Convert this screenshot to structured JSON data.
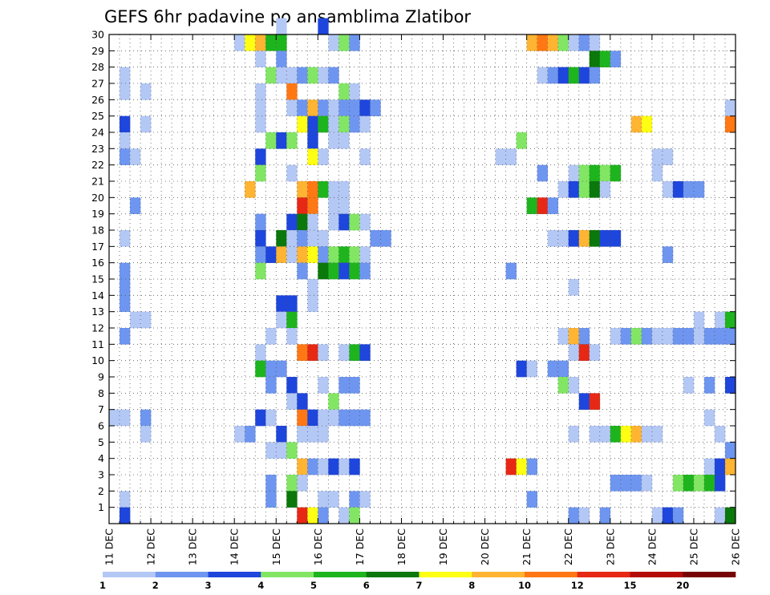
{
  "chart_data": {
    "type": "heatmap",
    "title": "GEFS 6hr padavine po ansamblima Zlatibor",
    "x_tick_labels": [
      "11 DEC",
      "12 DEC",
      "13 DEC",
      "14 DEC",
      "15 DEC",
      "16 DEC",
      "17 DEC",
      "18 DEC",
      "19 DEC",
      "20 DEC",
      "21 DEC",
      "22 DEC",
      "23 DEC",
      "24 DEC",
      "25 DEC",
      "26 DEC"
    ],
    "y_tick_labels": [
      "1",
      "2",
      "3",
      "4",
      "5",
      "6",
      "7",
      "8",
      "9",
      "10",
      "11",
      "12",
      "13",
      "14",
      "15",
      "16",
      "17",
      "18",
      "19",
      "20",
      "21",
      "22",
      "23",
      "24",
      "25",
      "26",
      "27",
      "28",
      "29",
      "30"
    ],
    "x_range": [
      0,
      60
    ],
    "y_range": [
      0,
      30
    ],
    "grid": true,
    "colorbar_labels": [
      "1",
      "2",
      "3",
      "4",
      "5",
      "6",
      "7",
      "8",
      "10",
      "12",
      "15",
      "20"
    ],
    "colorbar_colors": [
      "#b4c8f5",
      "#6e96f0",
      "#1e46dc",
      "#82e664",
      "#1eb41e",
      "#0a780a",
      "#ffff14",
      "#ffb432",
      "#ff7814",
      "#e62814",
      "#b40a0a",
      "#780505"
    ],
    "cells_legend": "each cell: [time_step (6h steps from 11 DEC 00Z), ensemble_member, precipitation_class_index 0-11]",
    "cells": [
      [
        16,
        30,
        0
      ],
      [
        20,
        30,
        2
      ],
      [
        12,
        29,
        0
      ],
      [
        13,
        29,
        6
      ],
      [
        14,
        29,
        7
      ],
      [
        15,
        29,
        4
      ],
      [
        16,
        29,
        4
      ],
      [
        21,
        29,
        0
      ],
      [
        22,
        29,
        3
      ],
      [
        23,
        29,
        1
      ],
      [
        40,
        29,
        7
      ],
      [
        41,
        29,
        8
      ],
      [
        42,
        29,
        7
      ],
      [
        43,
        29,
        3
      ],
      [
        44,
        29,
        0
      ],
      [
        45,
        29,
        1
      ],
      [
        46,
        29,
        0
      ],
      [
        14,
        28,
        0
      ],
      [
        16,
        28,
        1
      ],
      [
        46,
        28,
        5
      ],
      [
        47,
        28,
        4
      ],
      [
        48,
        28,
        1
      ],
      [
        1,
        27,
        0
      ],
      [
        15,
        27,
        3
      ],
      [
        16,
        27,
        0
      ],
      [
        17,
        27,
        0
      ],
      [
        18,
        27,
        1
      ],
      [
        19,
        27,
        3
      ],
      [
        20,
        27,
        0
      ],
      [
        21,
        27,
        1
      ],
      [
        41,
        27,
        0
      ],
      [
        42,
        27,
        1
      ],
      [
        43,
        27,
        2
      ],
      [
        44,
        27,
        4
      ],
      [
        45,
        27,
        2
      ],
      [
        46,
        27,
        1
      ],
      [
        1,
        26,
        0
      ],
      [
        3,
        26,
        0
      ],
      [
        14,
        26,
        0
      ],
      [
        17,
        26,
        8
      ],
      [
        22,
        26,
        3
      ],
      [
        23,
        26,
        0
      ],
      [
        14,
        25,
        0
      ],
      [
        17,
        25,
        0
      ],
      [
        18,
        25,
        1
      ],
      [
        19,
        25,
        7
      ],
      [
        20,
        25,
        1
      ],
      [
        21,
        25,
        0
      ],
      [
        22,
        25,
        1
      ],
      [
        23,
        25,
        1
      ],
      [
        24,
        25,
        2
      ],
      [
        25,
        25,
        1
      ],
      [
        59,
        25,
        0
      ],
      [
        1,
        24,
        2
      ],
      [
        3,
        24,
        0
      ],
      [
        14,
        24,
        0
      ],
      [
        18,
        24,
        6
      ],
      [
        19,
        24,
        2
      ],
      [
        20,
        24,
        4
      ],
      [
        21,
        24,
        0
      ],
      [
        22,
        24,
        3
      ],
      [
        23,
        24,
        1
      ],
      [
        24,
        24,
        0
      ],
      [
        50,
        24,
        7
      ],
      [
        51,
        24,
        6
      ],
      [
        59,
        24,
        8
      ],
      [
        1,
        23,
        0
      ],
      [
        15,
        23,
        3
      ],
      [
        16,
        23,
        2
      ],
      [
        17,
        23,
        3
      ],
      [
        19,
        23,
        2
      ],
      [
        21,
        23,
        0
      ],
      [
        22,
        23,
        0
      ],
      [
        39,
        23,
        3
      ],
      [
        1,
        22,
        1
      ],
      [
        2,
        22,
        0
      ],
      [
        14,
        22,
        2
      ],
      [
        19,
        22,
        6
      ],
      [
        20,
        22,
        0
      ],
      [
        24,
        22,
        0
      ],
      [
        37,
        22,
        0
      ],
      [
        38,
        22,
        0
      ],
      [
        52,
        22,
        0
      ],
      [
        53,
        22,
        0
      ],
      [
        14,
        21,
        3
      ],
      [
        17,
        21,
        0
      ],
      [
        41,
        21,
        1
      ],
      [
        44,
        21,
        0
      ],
      [
        45,
        21,
        3
      ],
      [
        46,
        21,
        4
      ],
      [
        47,
        21,
        3
      ],
      [
        48,
        21,
        4
      ],
      [
        52,
        21,
        0
      ],
      [
        13,
        20,
        7
      ],
      [
        18,
        20,
        7
      ],
      [
        19,
        20,
        8
      ],
      [
        20,
        20,
        4
      ],
      [
        21,
        20,
        0
      ],
      [
        22,
        20,
        0
      ],
      [
        43,
        20,
        0
      ],
      [
        44,
        20,
        2
      ],
      [
        45,
        20,
        3
      ],
      [
        46,
        20,
        5
      ],
      [
        47,
        20,
        0
      ],
      [
        53,
        20,
        0
      ],
      [
        54,
        20,
        2
      ],
      [
        55,
        20,
        1
      ],
      [
        56,
        20,
        1
      ],
      [
        2,
        19,
        1
      ],
      [
        18,
        19,
        9
      ],
      [
        19,
        19,
        8
      ],
      [
        21,
        19,
        0
      ],
      [
        22,
        19,
        0
      ],
      [
        40,
        19,
        4
      ],
      [
        41,
        19,
        9
      ],
      [
        42,
        19,
        1
      ],
      [
        14,
        18,
        1
      ],
      [
        17,
        18,
        2
      ],
      [
        18,
        18,
        5
      ],
      [
        19,
        18,
        0
      ],
      [
        21,
        18,
        0
      ],
      [
        22,
        18,
        2
      ],
      [
        23,
        18,
        3
      ],
      [
        24,
        18,
        0
      ],
      [
        1,
        17,
        0
      ],
      [
        14,
        17,
        2
      ],
      [
        16,
        17,
        5
      ],
      [
        17,
        17,
        0
      ],
      [
        18,
        17,
        1
      ],
      [
        19,
        17,
        0
      ],
      [
        20,
        17,
        0
      ],
      [
        25,
        17,
        1
      ],
      [
        26,
        17,
        1
      ],
      [
        42,
        17,
        0
      ],
      [
        43,
        17,
        0
      ],
      [
        44,
        17,
        2
      ],
      [
        45,
        17,
        7
      ],
      [
        46,
        17,
        5
      ],
      [
        47,
        17,
        2
      ],
      [
        48,
        17,
        2
      ],
      [
        14,
        16,
        1
      ],
      [
        15,
        16,
        2
      ],
      [
        16,
        16,
        7
      ],
      [
        17,
        16,
        0
      ],
      [
        18,
        16,
        7
      ],
      [
        19,
        16,
        6
      ],
      [
        20,
        16,
        1
      ],
      [
        21,
        16,
        3
      ],
      [
        22,
        16,
        4
      ],
      [
        23,
        16,
        3
      ],
      [
        24,
        16,
        0
      ],
      [
        53,
        16,
        1
      ],
      [
        1,
        15,
        1
      ],
      [
        14,
        15,
        3
      ],
      [
        18,
        15,
        1
      ],
      [
        20,
        15,
        5
      ],
      [
        21,
        15,
        4
      ],
      [
        22,
        15,
        2
      ],
      [
        23,
        15,
        4
      ],
      [
        24,
        15,
        1
      ],
      [
        38,
        15,
        1
      ],
      [
        1,
        14,
        1
      ],
      [
        19,
        14,
        0
      ],
      [
        44,
        14,
        0
      ],
      [
        1,
        13,
        1
      ],
      [
        16,
        13,
        2
      ],
      [
        17,
        13,
        2
      ],
      [
        19,
        13,
        0
      ],
      [
        2,
        12,
        0
      ],
      [
        3,
        12,
        0
      ],
      [
        16,
        12,
        0
      ],
      [
        17,
        12,
        4
      ],
      [
        56,
        12,
        0
      ],
      [
        58,
        12,
        0
      ],
      [
        59,
        12,
        4
      ],
      [
        1,
        11,
        1
      ],
      [
        15,
        11,
        0
      ],
      [
        17,
        11,
        0
      ],
      [
        43,
        11,
        0
      ],
      [
        44,
        11,
        7
      ],
      [
        45,
        11,
        1
      ],
      [
        48,
        11,
        0
      ],
      [
        49,
        11,
        1
      ],
      [
        50,
        11,
        3
      ],
      [
        51,
        11,
        1
      ],
      [
        52,
        11,
        0
      ],
      [
        53,
        11,
        0
      ],
      [
        54,
        11,
        1
      ],
      [
        55,
        11,
        1
      ],
      [
        56,
        11,
        0
      ],
      [
        57,
        11,
        1
      ],
      [
        58,
        11,
        1
      ],
      [
        59,
        11,
        1
      ],
      [
        14,
        10,
        0
      ],
      [
        18,
        10,
        8
      ],
      [
        19,
        10,
        9
      ],
      [
        20,
        10,
        0
      ],
      [
        22,
        10,
        0
      ],
      [
        23,
        10,
        4
      ],
      [
        24,
        10,
        2
      ],
      [
        44,
        10,
        0
      ],
      [
        45,
        10,
        9
      ],
      [
        46,
        10,
        0
      ],
      [
        14,
        9,
        4
      ],
      [
        15,
        9,
        1
      ],
      [
        16,
        9,
        1
      ],
      [
        39,
        9,
        2
      ],
      [
        40,
        9,
        0
      ],
      [
        42,
        9,
        1
      ],
      [
        43,
        9,
        1
      ],
      [
        15,
        8,
        1
      ],
      [
        17,
        8,
        2
      ],
      [
        20,
        8,
        0
      ],
      [
        22,
        8,
        1
      ],
      [
        23,
        8,
        1
      ],
      [
        43,
        8,
        3
      ],
      [
        44,
        8,
        0
      ],
      [
        55,
        8,
        0
      ],
      [
        57,
        8,
        1
      ],
      [
        59,
        8,
        2
      ],
      [
        17,
        7,
        0
      ],
      [
        18,
        7,
        2
      ],
      [
        21,
        7,
        3
      ],
      [
        45,
        7,
        2
      ],
      [
        46,
        7,
        9
      ],
      [
        0,
        6,
        0
      ],
      [
        1,
        6,
        0
      ],
      [
        3,
        6,
        1
      ],
      [
        14,
        6,
        2
      ],
      [
        15,
        6,
        0
      ],
      [
        18,
        6,
        8
      ],
      [
        19,
        6,
        2
      ],
      [
        20,
        6,
        0
      ],
      [
        21,
        6,
        0
      ],
      [
        22,
        6,
        1
      ],
      [
        23,
        6,
        1
      ],
      [
        24,
        6,
        1
      ],
      [
        57,
        6,
        0
      ],
      [
        3,
        5,
        0
      ],
      [
        12,
        5,
        0
      ],
      [
        13,
        5,
        1
      ],
      [
        16,
        5,
        2
      ],
      [
        18,
        5,
        0
      ],
      [
        19,
        5,
        0
      ],
      [
        20,
        5,
        0
      ],
      [
        44,
        5,
        0
      ],
      [
        46,
        5,
        0
      ],
      [
        47,
        5,
        0
      ],
      [
        48,
        5,
        4
      ],
      [
        49,
        5,
        6
      ],
      [
        50,
        5,
        7
      ],
      [
        51,
        5,
        0
      ],
      [
        52,
        5,
        0
      ],
      [
        58,
        5,
        0
      ],
      [
        15,
        4,
        0
      ],
      [
        16,
        4,
        0
      ],
      [
        17,
        4,
        3
      ],
      [
        59,
        4,
        1
      ],
      [
        18,
        3,
        7
      ],
      [
        19,
        3,
        1
      ],
      [
        20,
        3,
        0
      ],
      [
        21,
        3,
        2
      ],
      [
        22,
        3,
        0
      ],
      [
        23,
        3,
        2
      ],
      [
        38,
        3,
        9
      ],
      [
        39,
        3,
        6
      ],
      [
        40,
        3,
        1
      ],
      [
        57,
        3,
        0
      ],
      [
        58,
        3,
        2
      ],
      [
        59,
        3,
        7
      ],
      [
        15,
        2,
        1
      ],
      [
        17,
        2,
        3
      ],
      [
        18,
        2,
        0
      ],
      [
        48,
        2,
        1
      ],
      [
        49,
        2,
        1
      ],
      [
        50,
        2,
        1
      ],
      [
        51,
        2,
        0
      ],
      [
        54,
        2,
        3
      ],
      [
        55,
        2,
        4
      ],
      [
        56,
        2,
        3
      ],
      [
        57,
        2,
        4
      ],
      [
        58,
        2,
        2
      ],
      [
        1,
        1,
        0
      ],
      [
        15,
        1,
        1
      ],
      [
        17,
        1,
        5
      ],
      [
        20,
        1,
        0
      ],
      [
        21,
        1,
        0
      ],
      [
        23,
        1,
        1
      ],
      [
        24,
        1,
        0
      ],
      [
        40,
        1,
        1
      ],
      [
        1,
        0,
        2
      ],
      [
        18,
        0,
        9
      ],
      [
        19,
        0,
        6
      ],
      [
        20,
        0,
        1
      ],
      [
        22,
        0,
        0
      ],
      [
        23,
        0,
        3
      ],
      [
        44,
        0,
        1
      ],
      [
        45,
        0,
        0
      ],
      [
        47,
        0,
        1
      ],
      [
        52,
        0,
        0
      ],
      [
        53,
        0,
        2
      ],
      [
        54,
        0,
        1
      ],
      [
        58,
        0,
        0
      ],
      [
        59,
        0,
        5
      ]
    ]
  }
}
